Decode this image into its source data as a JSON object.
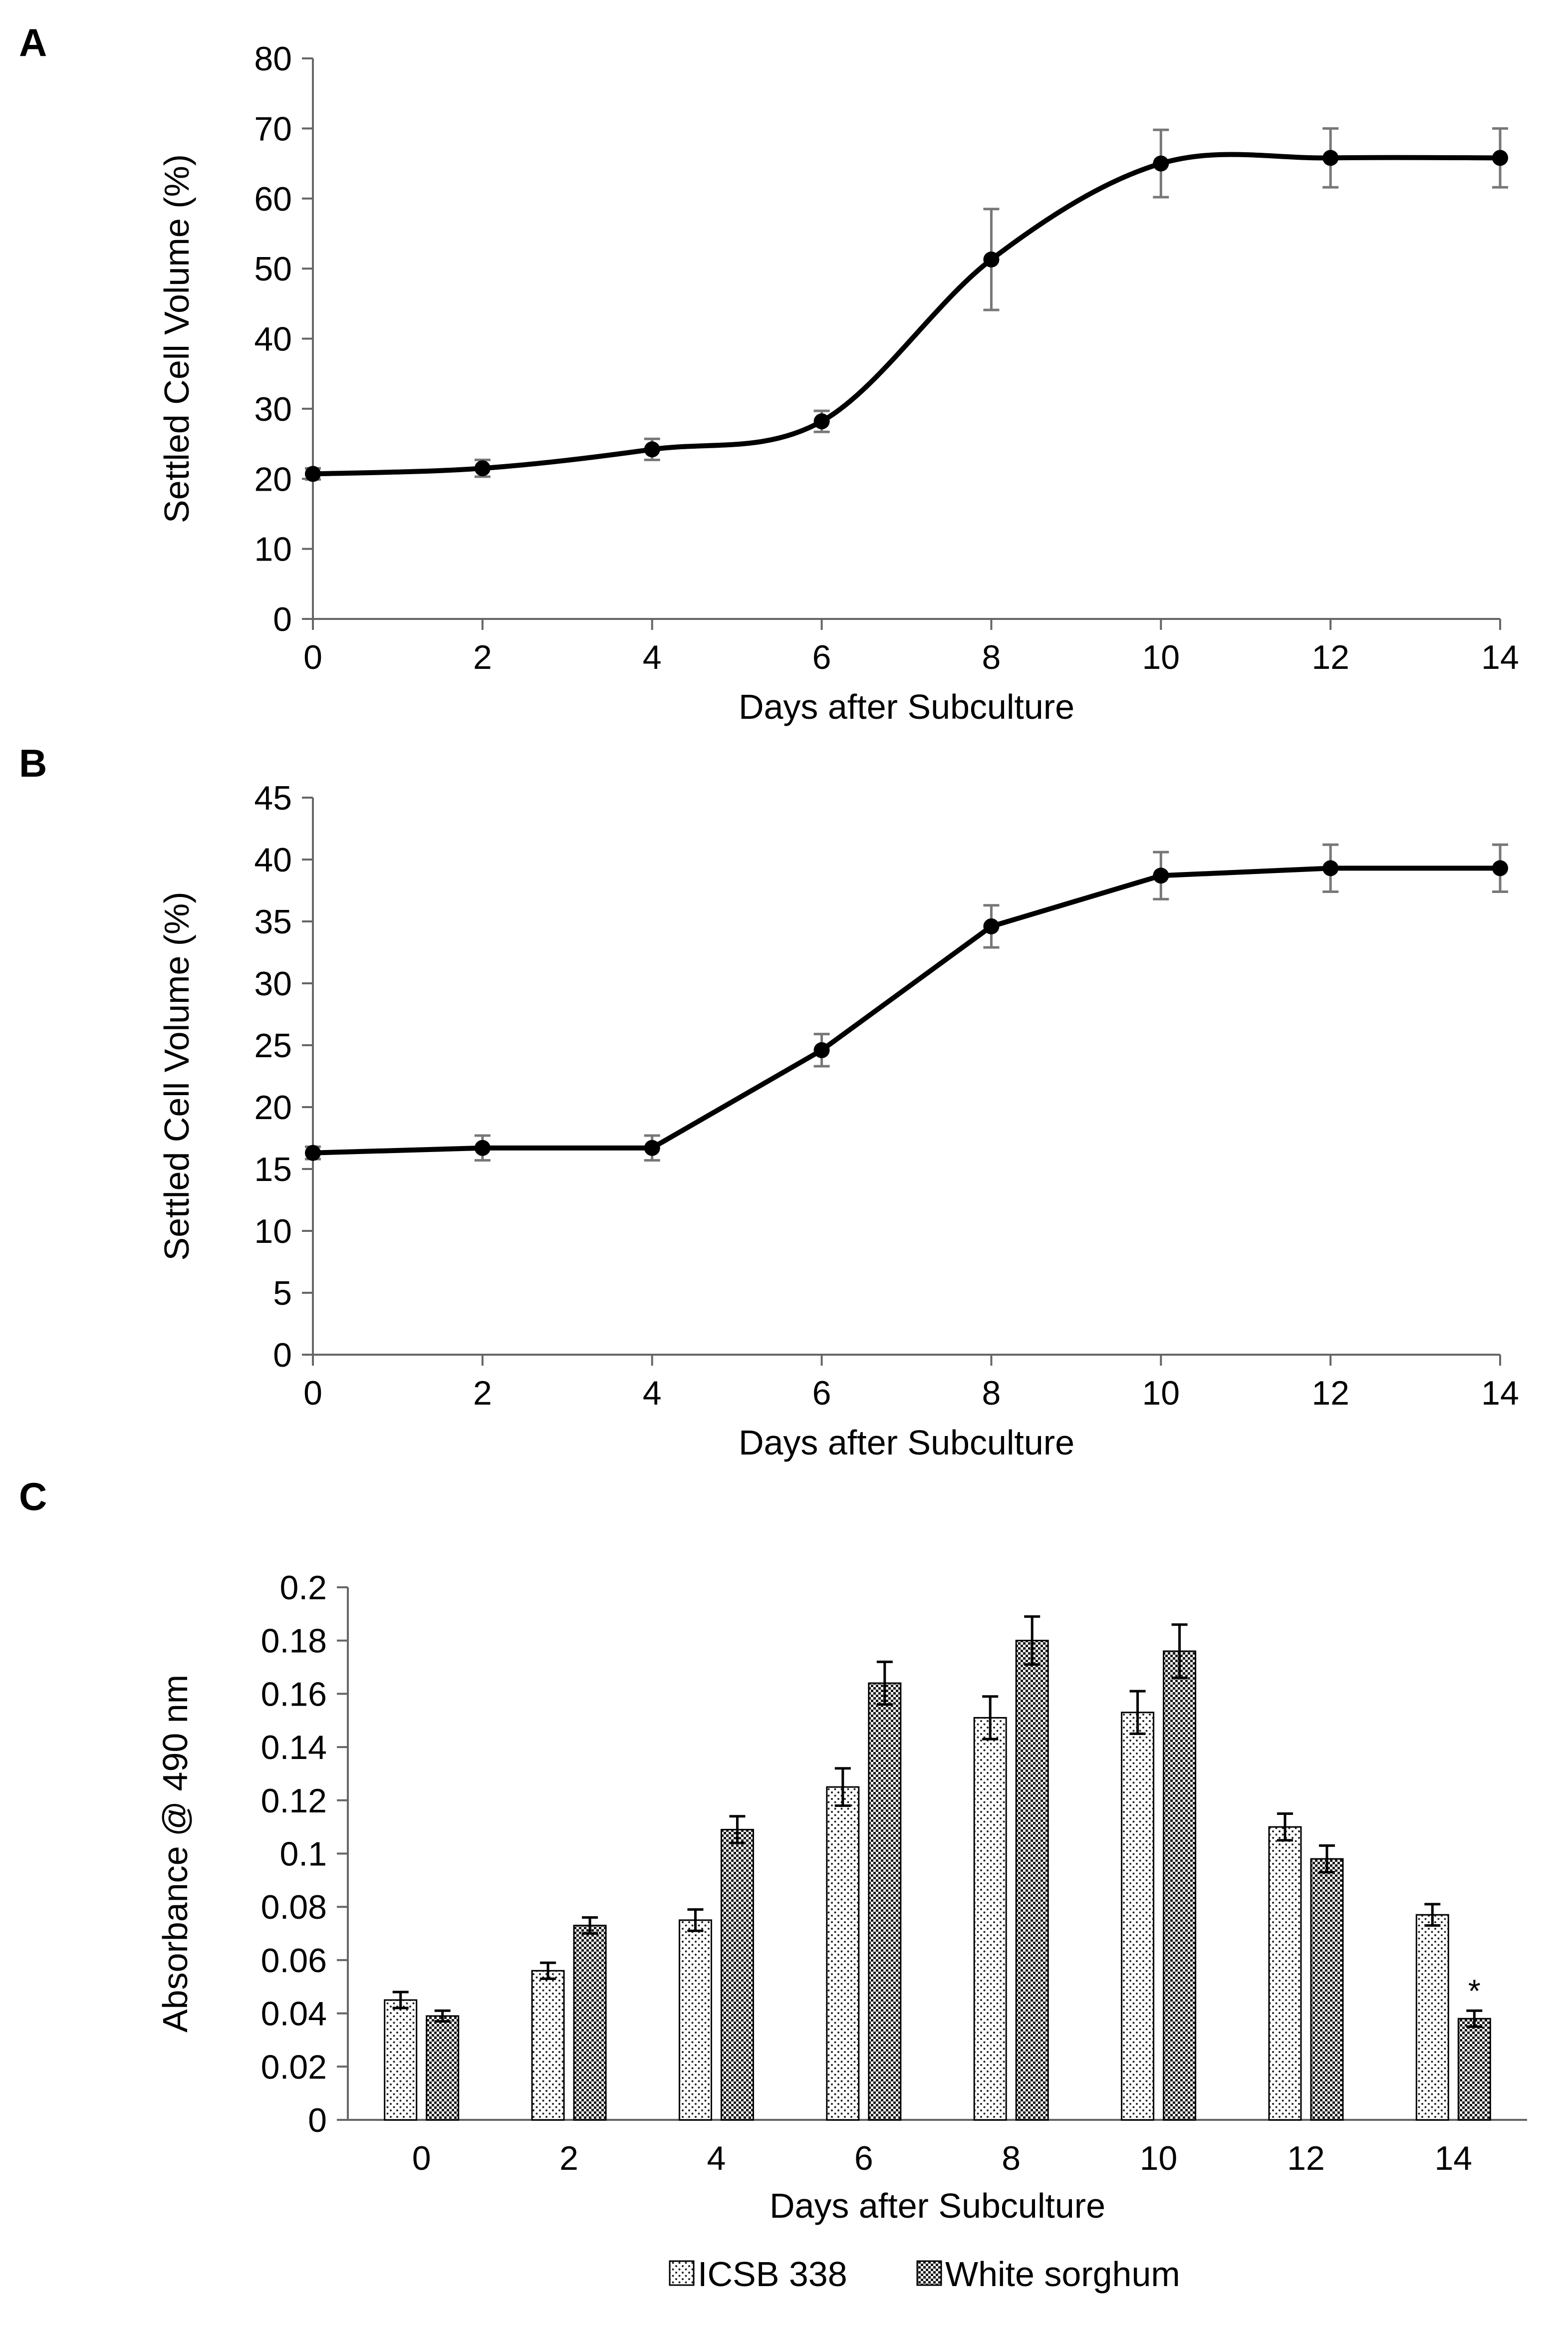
{
  "panels": {
    "a": "A",
    "b": "B",
    "c": "C"
  },
  "chart_data": [
    {
      "type": "line",
      "panel": "A",
      "title": "",
      "xlabel": "Days after Subculture",
      "ylabel": "Settled Cell Volume (%)",
      "xlim": [
        0,
        14
      ],
      "ylim": [
        0,
        80
      ],
      "xticks": [
        0,
        2,
        4,
        6,
        8,
        10,
        12,
        14
      ],
      "yticks": [
        0,
        10,
        20,
        30,
        40,
        50,
        60,
        70,
        80
      ],
      "smooth": true,
      "grid": false,
      "series": [
        {
          "name": "Settled Cell Volume",
          "color": "#000000",
          "x": [
            0,
            2,
            4,
            6,
            8,
            10,
            12,
            14
          ],
          "y": [
            20.7,
            21.5,
            24.2,
            28.2,
            51.3,
            65.0,
            65.8,
            65.8
          ],
          "err": [
            0.8,
            1.2,
            1.5,
            1.5,
            7.2,
            4.8,
            4.2,
            4.2
          ]
        }
      ]
    },
    {
      "type": "line",
      "panel": "B",
      "title": "",
      "xlabel": "Days after Subculture",
      "ylabel": "Settled Cell Volume (%)",
      "xlim": [
        0,
        14
      ],
      "ylim": [
        0,
        45
      ],
      "xticks": [
        0,
        2,
        4,
        6,
        8,
        10,
        12,
        14
      ],
      "yticks": [
        0,
        5,
        10,
        15,
        20,
        25,
        30,
        35,
        40,
        45
      ],
      "smooth": false,
      "grid": false,
      "series": [
        {
          "name": "Settled Cell Volume",
          "color": "#000000",
          "x": [
            0,
            2,
            4,
            6,
            8,
            10,
            12,
            14
          ],
          "y": [
            16.3,
            16.7,
            16.7,
            24.6,
            34.6,
            38.7,
            39.3,
            39.3
          ],
          "err": [
            0.5,
            1.0,
            1.0,
            1.3,
            1.7,
            1.9,
            1.9,
            1.9
          ]
        }
      ]
    },
    {
      "type": "bar",
      "panel": "C",
      "title": "",
      "xlabel": "Days after Subculture",
      "ylabel": "Absorbance @ 490 nm",
      "categories": [
        "0",
        "2",
        "4",
        "6",
        "8",
        "10",
        "12",
        "14"
      ],
      "ylim": [
        0,
        0.2
      ],
      "yticks": [
        "0",
        "0.02",
        "0.04",
        "0.06",
        "0.08",
        "0.1",
        "0.12",
        "0.14",
        "0.16",
        "0.18",
        "0.2"
      ],
      "grid": false,
      "legend_position": "bottom",
      "series": [
        {
          "name": "ICSB 338",
          "pattern": "dots",
          "values": [
            0.045,
            0.056,
            0.075,
            0.125,
            0.151,
            0.153,
            0.11,
            0.077
          ],
          "err": [
            0.003,
            0.003,
            0.004,
            0.007,
            0.008,
            0.008,
            0.005,
            0.004
          ]
        },
        {
          "name": "White sorghum",
          "pattern": "checker",
          "values": [
            0.039,
            0.073,
            0.109,
            0.164,
            0.18,
            0.176,
            0.098,
            0.038
          ],
          "err": [
            0.002,
            0.003,
            0.005,
            0.008,
            0.009,
            0.01,
            0.005,
            0.003
          ]
        }
      ],
      "annotations": [
        {
          "text": "*",
          "category": "14",
          "series": "White sorghum"
        }
      ]
    }
  ]
}
